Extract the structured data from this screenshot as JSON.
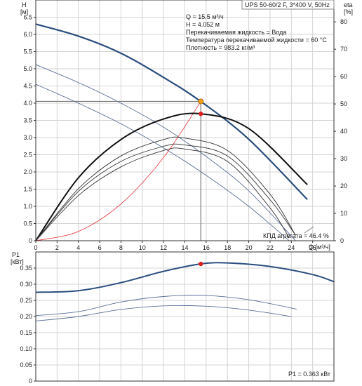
{
  "chart_data": [
    {
      "type": "line",
      "title": "UPS 50-60/2 F, 3*400 V, 50Hz",
      "ylabel": [
        "H",
        "[м]"
      ],
      "y2label": [
        "eta",
        "[%]"
      ],
      "xlabel": "Q [м³/ч]",
      "xlim": [
        0,
        28
      ],
      "ylim": [
        0,
        7.0
      ],
      "y2lim": [
        0,
        88
      ],
      "grid": true,
      "x_ticks": [
        "0",
        "2",
        "4",
        "6",
        "8",
        "10",
        "12",
        "14",
        "16",
        "18",
        "20",
        "22",
        "24",
        "26"
      ],
      "y_ticks": [
        "0",
        "0.5",
        "1.0",
        "1.5",
        "2.0",
        "2.5",
        "3.0",
        "3.5",
        "4.0",
        "4.5",
        "5.0",
        "5.5",
        "6.0",
        "6.5"
      ],
      "y2_ticks": [
        "0",
        "10",
        "20",
        "30",
        "40",
        "50",
        "60",
        "70",
        "80"
      ],
      "annotations": [
        "Q = 15.5 м³/ч",
        "H = 4.052 м",
        "Перекачиваемая жидкость = Вода",
        "Температура перекачиваемой жидкости = 60 °C",
        "Плотность = 983.2 кг/м³"
      ],
      "efficiency_label": "КПД агрегата = 46.4 %",
      "duty_point": {
        "q": 15.5,
        "h": 4.052,
        "eta": 46.4
      },
      "series": [
        {
          "role": "head_max",
          "x": [
            0,
            4,
            8,
            12,
            15.5,
            20,
            25.5
          ],
          "values": [
            6.3,
            5.95,
            5.45,
            4.75,
            4.05,
            2.95,
            1.2
          ]
        },
        {
          "role": "head_mid",
          "x": [
            0,
            4,
            8,
            12,
            16,
            20,
            24.4
          ],
          "values": [
            5.12,
            4.6,
            4.0,
            3.3,
            2.45,
            1.45,
            0.0
          ]
        },
        {
          "role": "head_min",
          "x": [
            0,
            4,
            8,
            12,
            16,
            20,
            23.8
          ],
          "values": [
            4.55,
            4.0,
            3.4,
            2.7,
            1.9,
            1.0,
            0.0
          ]
        },
        {
          "role": "system",
          "x": [
            0,
            4,
            8,
            12,
            15.5
          ],
          "values": [
            0,
            0.27,
            1.07,
            2.42,
            4.05
          ]
        },
        {
          "role": "eta_max",
          "x": [
            0,
            4,
            8,
            12,
            15.5,
            20,
            25.5
          ],
          "values": [
            0,
            23,
            37,
            44.5,
            46.4,
            41,
            20.5
          ]
        },
        {
          "role": "eta_mid",
          "x": [
            0,
            4,
            8,
            12,
            14,
            18,
            22,
            24.4
          ],
          "values": [
            0,
            19,
            31,
            37,
            37.5,
            33,
            17,
            2
          ]
        },
        {
          "role": "eta_low",
          "x": [
            0,
            4,
            8,
            12,
            14,
            18,
            22,
            24.4
          ],
          "values": [
            0,
            18,
            29,
            34.5,
            35,
            31,
            15,
            2
          ]
        },
        {
          "role": "eta_min",
          "x": [
            0,
            4,
            8,
            12,
            14,
            18,
            22,
            23.8
          ],
          "values": [
            0,
            16.5,
            27,
            33,
            33.5,
            29,
            12,
            1
          ]
        }
      ]
    },
    {
      "type": "line",
      "ylabel": [
        "P1",
        "[кВт]"
      ],
      "xlim": [
        0,
        28
      ],
      "ylim": [
        0,
        0.4
      ],
      "grid": true,
      "y_ticks": [
        "0",
        "0.05",
        "0.10",
        "0.15",
        "0.20",
        "0.25",
        "0.30",
        "0.35"
      ],
      "annotations": [
        "P1 = 0.363 кВт"
      ],
      "duty_point": {
        "q": 15.5,
        "p1": 0.363
      },
      "series": [
        {
          "role": "power_max",
          "x": [
            0,
            4,
            8,
            12,
            15.5,
            18,
            22,
            26,
            28
          ],
          "values": [
            0.275,
            0.28,
            0.305,
            0.34,
            0.363,
            0.366,
            0.355,
            0.33,
            0.308
          ]
        },
        {
          "role": "power_mid",
          "x": [
            0,
            4,
            8,
            12,
            16,
            20,
            24.5
          ],
          "values": [
            0.203,
            0.215,
            0.245,
            0.262,
            0.265,
            0.252,
            0.223
          ]
        },
        {
          "role": "power_min",
          "x": [
            0,
            4,
            8,
            12,
            16,
            20,
            24
          ],
          "values": [
            0.186,
            0.2,
            0.222,
            0.233,
            0.232,
            0.22,
            0.2
          ]
        }
      ]
    }
  ],
  "colors": {
    "head_curve": "#2a4e7e",
    "head_thin": "#5a6f96",
    "eta_curve": "#111111",
    "system_curve": "#e8474c",
    "duty_head_point": "#f0a020",
    "duty_point": "#e02020",
    "grid": "#d4d4d4",
    "duty_line": "#777777"
  }
}
